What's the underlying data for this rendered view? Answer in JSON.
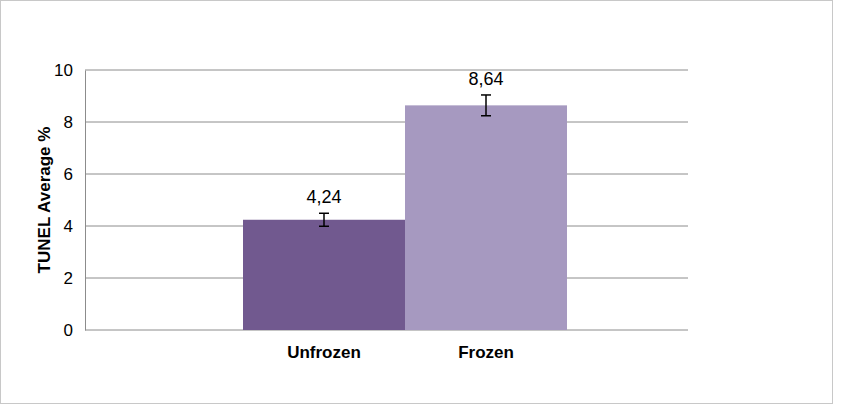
{
  "chart_data": {
    "type": "bar",
    "y_label": "TUNEL Average %",
    "categories": [
      "Unfrozen",
      "Frozen"
    ],
    "values": [
      4.24,
      8.64
    ],
    "value_labels": [
      "4,24",
      "8,64"
    ],
    "errors": [
      0.25,
      0.4
    ],
    "colors": [
      "#71598f",
      "#a699c0"
    ],
    "ylim": [
      0,
      10
    ],
    "yticks": [
      0,
      2,
      4,
      6,
      8,
      10
    ],
    "grid": true,
    "data_labels": true
  }
}
